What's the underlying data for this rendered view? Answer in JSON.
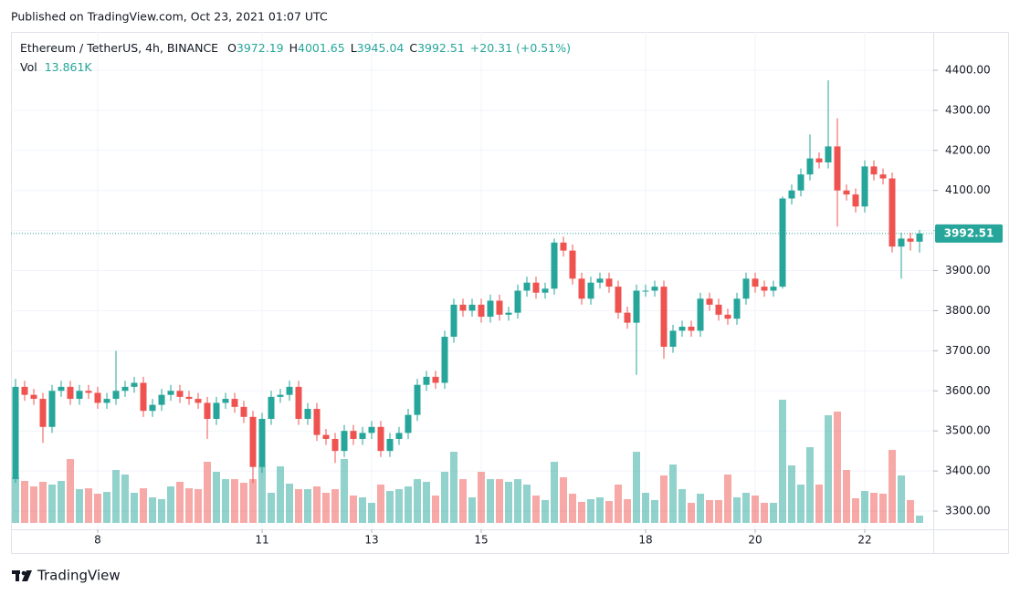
{
  "header": {
    "published": "Published on TradingView.com, Oct 23, 2021 01:07 UTC"
  },
  "chart_data": {
    "type": "candlestick",
    "symbol": "Ethereum / TetherUS, 4h, BINANCE",
    "o_label": "O",
    "h_label": "H",
    "l_label": "L",
    "c_label": "C",
    "change": {
      "value": 20.31,
      "label": "+20.31"
    },
    "change_pct": {
      "value": 0.51,
      "label": "(+0.51%)"
    },
    "vol_name": "Vol",
    "vol_label": "13.861K",
    "up_color": "#26a69a",
    "down_color": "#ef5350",
    "open": [
      3380,
      3610,
      3590,
      3580,
      3510,
      3600,
      3610,
      3580,
      3600,
      3595,
      3570,
      3580,
      3600,
      3610,
      3620,
      3550,
      3565,
      3590,
      3600,
      3585,
      3580,
      3570,
      3530,
      3570,
      3580,
      3560,
      3535,
      3410,
      3530,
      3585,
      3590,
      3610,
      3530,
      3555,
      3490,
      3480,
      3450,
      3500,
      3480,
      3495,
      3510,
      3450,
      3480,
      3495,
      3540,
      3615,
      3635,
      3620,
      3735,
      3815,
      3800,
      3815,
      3785,
      3825,
      3790,
      3795,
      3850,
      3870,
      3845,
      3855,
      3970,
      3950,
      3880,
      3830,
      3870,
      3880,
      3860,
      3795,
      3770,
      3850,
      3850,
      3860,
      3710,
      3750,
      3760,
      3750,
      3830,
      3815,
      3790,
      3780,
      3830,
      3880,
      3860,
      3850,
      3860,
      4080,
      4100,
      4140,
      4180,
      4170,
      4210,
      4100,
      4090,
      4060,
      4160,
      4140,
      4130,
      3960,
      3980,
      3972.19
    ],
    "high": [
      3630,
      3625,
      3605,
      3595,
      3615,
      3625,
      3625,
      3615,
      3615,
      3610,
      3595,
      3700,
      3625,
      3635,
      3635,
      3580,
      3605,
      3615,
      3615,
      3600,
      3595,
      3585,
      3585,
      3595,
      3595,
      3575,
      3550,
      3545,
      3600,
      3605,
      3625,
      3625,
      3570,
      3570,
      3505,
      3495,
      3515,
      3515,
      3510,
      3525,
      3525,
      3495,
      3510,
      3555,
      3630,
      3650,
      3650,
      3750,
      3830,
      3830,
      3830,
      3830,
      3840,
      3840,
      3810,
      3865,
      3885,
      3885,
      3870,
      3980,
      3985,
      3965,
      3895,
      3885,
      3895,
      3895,
      3875,
      3810,
      3865,
      3865,
      3875,
      3875,
      3765,
      3775,
      3775,
      3845,
      3845,
      3830,
      3805,
      3845,
      3895,
      3895,
      3875,
      3875,
      4085,
      4115,
      4155,
      4240,
      4195,
      4375,
      4280,
      4115,
      4105,
      4175,
      4175,
      4155,
      4145,
      3995,
      3995,
      4001.65
    ],
    "low": [
      3370,
      3575,
      3565,
      3470,
      3495,
      3585,
      3565,
      3565,
      3580,
      3555,
      3555,
      3565,
      3585,
      3595,
      3535,
      3535,
      3550,
      3575,
      3570,
      3565,
      3555,
      3480,
      3515,
      3555,
      3545,
      3520,
      3370,
      3395,
      3515,
      3570,
      3575,
      3515,
      3515,
      3475,
      3465,
      3420,
      3435,
      3465,
      3465,
      3480,
      3435,
      3435,
      3465,
      3480,
      3525,
      3600,
      3605,
      3605,
      3720,
      3785,
      3785,
      3770,
      3770,
      3775,
      3775,
      3780,
      3835,
      3830,
      3830,
      3840,
      3935,
      3865,
      3815,
      3815,
      3855,
      3845,
      3780,
      3755,
      3640,
      3835,
      3835,
      3680,
      3695,
      3735,
      3735,
      3735,
      3800,
      3775,
      3765,
      3765,
      3815,
      3845,
      3835,
      3835,
      3855,
      4065,
      4085,
      4125,
      4155,
      4155,
      4010,
      4075,
      4045,
      4045,
      4125,
      4115,
      3945,
      3880,
      3950,
      3945.04
    ],
    "close": [
      3610,
      3590,
      3580,
      3510,
      3600,
      3610,
      3580,
      3600,
      3595,
      3570,
      3580,
      3600,
      3610,
      3620,
      3550,
      3565,
      3590,
      3600,
      3585,
      3580,
      3570,
      3530,
      3570,
      3580,
      3560,
      3535,
      3410,
      3530,
      3585,
      3590,
      3610,
      3530,
      3555,
      3490,
      3480,
      3450,
      3500,
      3480,
      3495,
      3510,
      3450,
      3480,
      3495,
      3540,
      3615,
      3635,
      3620,
      3735,
      3815,
      3800,
      3815,
      3785,
      3825,
      3790,
      3795,
      3850,
      3870,
      3845,
      3855,
      3970,
      3950,
      3880,
      3830,
      3870,
      3880,
      3860,
      3795,
      3770,
      3850,
      3850,
      3860,
      3710,
      3750,
      3760,
      3750,
      3830,
      3815,
      3790,
      3780,
      3830,
      3880,
      3860,
      3850,
      3860,
      4080,
      4100,
      4140,
      4180,
      4170,
      4210,
      4100,
      4090,
      4060,
      4160,
      4140,
      4130,
      3960,
      3980,
      3972.19,
      3992.51
    ],
    "volume": [
      86.5,
      79.6,
      69.2,
      77.9,
      72.7,
      79.6,
      121.1,
      64,
      65.7,
      55.4,
      58.8,
      100.3,
      91.7,
      57.1,
      65.7,
      48.4,
      45,
      69.2,
      77.9,
      65.7,
      64,
      115.9,
      96.9,
      83,
      83,
      76.1,
      83,
      107.3,
      57.1,
      107.3,
      74.4,
      64,
      64,
      69.2,
      57.1,
      64,
      121.1,
      51.9,
      48.4,
      38.1,
      72.7,
      60.6,
      64,
      69.2,
      83,
      77.9,
      51.9,
      96.9,
      134.9,
      83,
      48.4,
      96.9,
      83,
      83,
      77.9,
      83,
      72.7,
      51.9,
      43.3,
      115.9,
      86.5,
      55.4,
      39.8,
      45,
      48.4,
      41.5,
      72.7,
      45,
      134.9,
      57.1,
      43.3,
      90,
      110.7,
      64,
      38.1,
      55.4,
      43.3,
      43.3,
      91.7,
      48.4,
      57.1,
      51.9,
      38.1,
      38.1,
      233.6,
      109,
      72.7,
      143.6,
      72.7,
      204.1,
      211.1,
      100.3,
      46.7,
      60.6,
      57.1,
      55.4,
      138.4,
      90,
      43.3,
      13.861
    ],
    "xticks": [
      {
        "value": 9,
        "label": "8"
      },
      {
        "value": 27,
        "label": "11"
      },
      {
        "value": 39,
        "label": "13"
      },
      {
        "value": 51,
        "label": "15"
      },
      {
        "value": 69,
        "label": "18"
      },
      {
        "value": 81,
        "label": "20"
      },
      {
        "value": 93,
        "label": "22"
      }
    ],
    "ylim": [
      3254.5,
      4495.6
    ],
    "yticks": [
      {
        "value": 3300,
        "label": "3300.00"
      },
      {
        "value": 3400,
        "label": "3400.00"
      },
      {
        "value": 3500,
        "label": "3500.00"
      },
      {
        "value": 3600,
        "label": "3600.00"
      },
      {
        "value": 3700,
        "label": "3700.00"
      },
      {
        "value": 3800,
        "label": "3800.00"
      },
      {
        "value": 3900,
        "label": "3900.00"
      },
      {
        "value": 4000,
        "label": "4000.00"
      },
      {
        "value": 4100,
        "label": "4100.00"
      },
      {
        "value": 4200,
        "label": "4200.00"
      },
      {
        "value": 4300,
        "label": "4300.00"
      },
      {
        "value": 4400,
        "label": "4400.00"
      }
    ],
    "grid": true
  },
  "footer": {
    "brand": "TradingView"
  }
}
